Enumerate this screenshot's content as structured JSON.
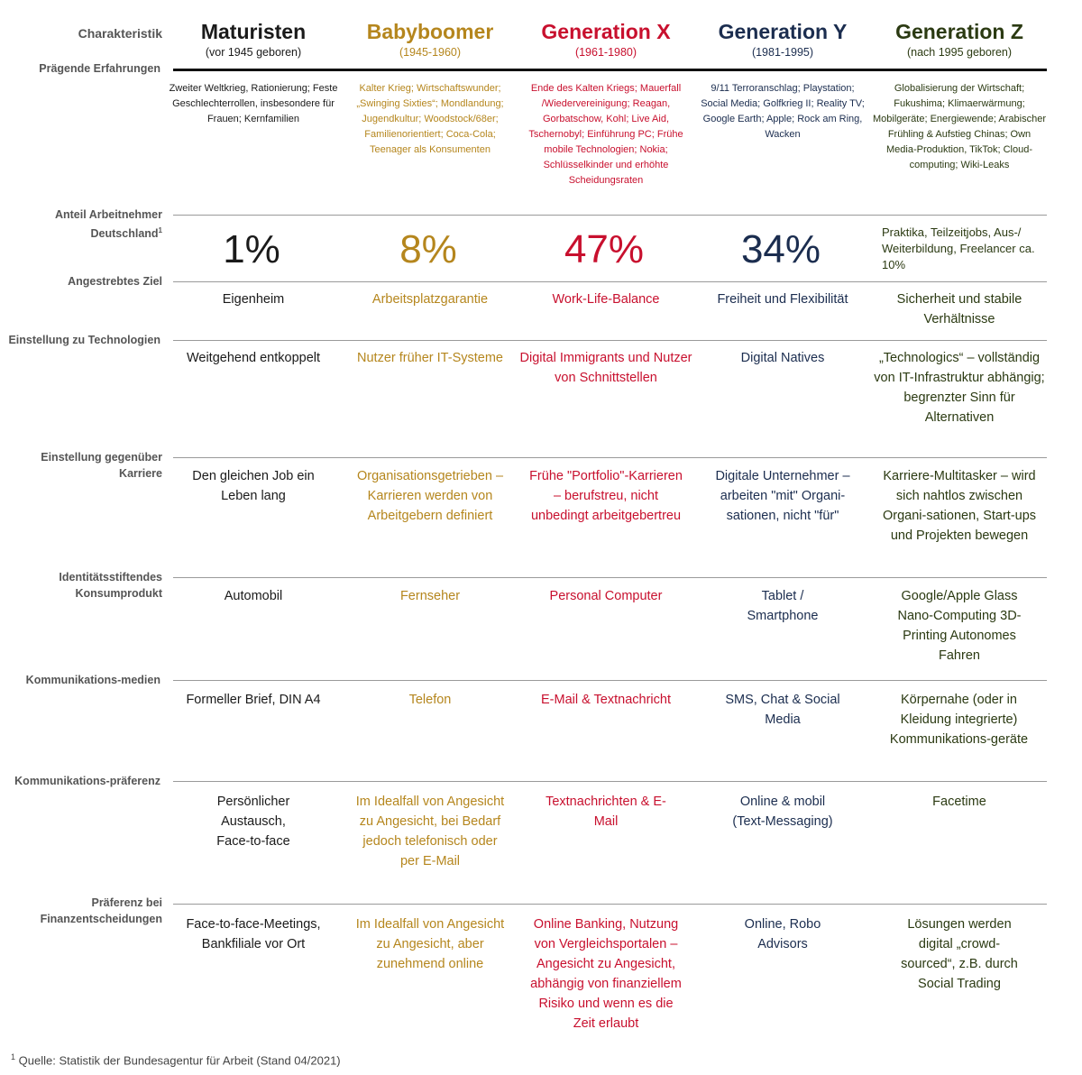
{
  "header": {
    "label": "Charakteristik",
    "generations": [
      {
        "name": "Maturisten",
        "years": "(vor 1945 geboren)"
      },
      {
        "name": "Babyboomer",
        "years": "(1945-1960)"
      },
      {
        "name": "Generation X",
        "years": "(1961-1980)"
      },
      {
        "name": "Generation Y",
        "years": "(1981-1995)"
      },
      {
        "name": "Generation Z",
        "years": "(nach 1995 geboren)"
      }
    ]
  },
  "colors": {
    "maturisten": "#1a1a1a",
    "babyboomer": "#b5861d",
    "generation_x": "#c8102e",
    "generation_y": "#1b2d4f",
    "generation_z": "#2b3a12",
    "label": "#555555"
  },
  "rows": {
    "erfahrungen": {
      "label": "Prägende Erfahrungen",
      "values": [
        "Zweiter Weltkrieg, Rationierung; Feste Geschlechterrollen, insbesondere für Frauen; Kernfamilien",
        "Kalter Krieg; Wirtschaftswunder; „Swinging Sixties“; Mondlandung; Jugendkultur; Woodstock/68er; Familienorientiert; Coca-Cola; Teenager als Konsumenten",
        "Ende des Kalten Kriegs; Mauerfall /Wiedervereinigung; Reagan, Gorbatschow, Kohl; Live Aid, Tschernobyl; Einführung PC; Frühe mobile Technologien; Nokia; Schlüsselkinder und erhöhte Scheidungsraten",
        "9/11 Terroranschlag; Playstation; Social Media; Golfkrieg II; Reality TV; Google Earth; Apple; Rock am Ring, Wacken",
        "Globalisierung der Wirtschaft; Fukushima; Klimaerwärmung; Mobilgeräte; Energiewende; Arabischer Frühling & Aufstieg Chinas; Own Media-Produktion, TikTok; Cloud-computing; Wiki-Leaks"
      ]
    },
    "anteil": {
      "label": "Anteil Arbeitnehmer Deutschland",
      "label_sup": "1",
      "values": [
        "1%",
        "8%",
        "47%",
        "34%"
      ],
      "note": "Praktika, Teilzeitjobs, Aus-/ Weiterbildung, Freelancer ca. 10%"
    },
    "ziel": {
      "label": "Angestrebtes Ziel",
      "values": [
        "Eigenheim",
        "Arbeitsplatzgarantie",
        "Work-Life-Balance",
        "Freiheit und Flexibilität",
        "Sicherheit und stabile Verhältnisse"
      ]
    },
    "technologien": {
      "label": "Einstellung zu Technologien",
      "values": [
        "Weitgehend entkoppelt",
        "Nutzer früher IT-Systeme",
        "Digital Immigrants und Nutzer von Schnittstellen",
        "Digital Natives",
        "„Technologics“ – vollständig von IT-Infrastruktur abhängig; begrenzter Sinn für Alternativen"
      ]
    },
    "karriere": {
      "label": "Einstellung gegenüber Karriere",
      "values": [
        "Den gleichen Job ein Leben lang",
        "Organisationsgetrieben – Karrieren werden von Arbeitgebern definiert",
        "Frühe \"Portfolio\"-Karrieren – berufstreu, nicht unbedingt arbeitgebertreu",
        "Digitale Unternehmer – arbeiten \"mit\" Organi-sationen, nicht \"für\"",
        "Karriere-Multitasker – wird sich nahtlos zwischen Organi-sationen, Start-ups und Projekten bewegen"
      ]
    },
    "konsumprodukt": {
      "label": "Identitätsstiftendes Konsumprodukt",
      "values": [
        "Automobil",
        "Fernseher",
        "Personal Computer",
        "Tablet / Smartphone",
        "Google/Apple Glass Nano-Computing 3D-Printing Autonomes Fahren"
      ]
    },
    "medien": {
      "label": "Kommunikations-medien",
      "values": [
        "Formeller Brief, DIN A4",
        "Telefon",
        "E-Mail & Textnachricht",
        "SMS, Chat & Social Media",
        "Körpernahe (oder in Kleidung integrierte) Kommunikations-geräte"
      ]
    },
    "praeferenz": {
      "label": "Kommunikations-präferenz",
      "values": [
        "Persönlicher Austausch, Face-to-face",
        "Im Idealfall von Angesicht zu Angesicht, bei Bedarf jedoch telefonisch oder per E-Mail",
        "Textnachrichten & E-Mail",
        "Online & mobil (Text-Messaging)",
        "Facetime"
      ]
    },
    "finanzen": {
      "label": "Präferenz bei Finanzentscheidungen",
      "values": [
        "Face-to-face-Meetings, Bankfiliale vor Ort",
        "Im Idealfall von Angesicht zu Angesicht, aber zunehmend online",
        "Online Banking, Nutzung von Vergleichsportalen – Angesicht zu Angesicht, abhängig von finanziellem Risiko und wenn es die Zeit erlaubt",
        "Online, Robo Advisors",
        "Lösungen werden digital „crowd-sourced“, z.B. durch Social Trading"
      ]
    }
  },
  "footnote": {
    "marker": "1",
    "text": "Quelle: Statistik der Bundesagentur für Arbeit (Stand 04/2021)"
  }
}
